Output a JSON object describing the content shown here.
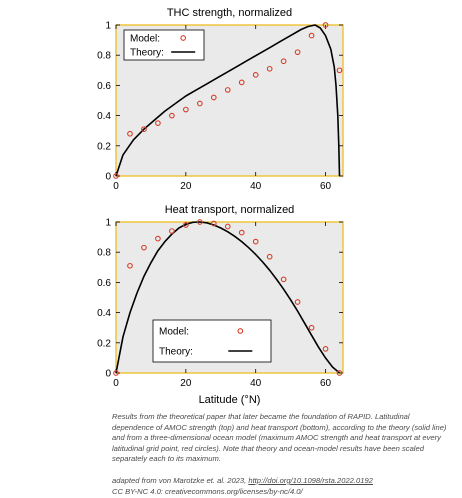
{
  "chart_data": [
    {
      "type": "line",
      "title": "THC strength, normalized",
      "xlabel": "",
      "ylabel": "",
      "xlim": [
        0,
        65
      ],
      "ylim": [
        0,
        1
      ],
      "x_ticks": [
        "0",
        "20",
        "40",
        "60"
      ],
      "y_ticks": [
        "0",
        "0.2",
        "0.4",
        "0.6",
        "0.8",
        "1"
      ],
      "grid": false,
      "legend_position": "top-left",
      "series": [
        {
          "name": "Theory:",
          "style": "solid black line",
          "x": [
            0,
            2,
            5,
            8,
            11,
            14,
            17,
            20,
            23,
            26,
            29,
            32,
            35,
            38,
            41,
            44,
            47,
            50,
            53,
            55,
            57,
            58.5,
            60,
            61.5,
            62.5,
            63,
            63.5,
            63.8,
            64
          ],
          "y": [
            0,
            0.14,
            0.24,
            0.31,
            0.37,
            0.43,
            0.48,
            0.53,
            0.57,
            0.61,
            0.65,
            0.69,
            0.73,
            0.77,
            0.81,
            0.85,
            0.89,
            0.93,
            0.97,
            0.99,
            1.0,
            0.98,
            0.93,
            0.84,
            0.72,
            0.6,
            0.4,
            0.2,
            0
          ]
        },
        {
          "name": "Model:",
          "style": "red open circles",
          "x": [
            0,
            4,
            8,
            12,
            16,
            20,
            24,
            28,
            32,
            36,
            40,
            44,
            48,
            52,
            56,
            60,
            64
          ],
          "y": [
            0,
            0.28,
            0.31,
            0.35,
            0.4,
            0.44,
            0.48,
            0.52,
            0.57,
            0.62,
            0.67,
            0.71,
            0.76,
            0.82,
            0.93,
            1.0,
            0.7
          ]
        }
      ]
    },
    {
      "type": "line",
      "title": "Heat transport, normalized",
      "xlabel": "Latitude (°N)",
      "ylabel": "",
      "xlim": [
        0,
        65
      ],
      "ylim": [
        0,
        1
      ],
      "x_ticks": [
        "0",
        "20",
        "40",
        "60"
      ],
      "y_ticks": [
        "0",
        "0.2",
        "0.4",
        "0.6",
        "0.8",
        "1"
      ],
      "grid": false,
      "legend_position": "bottom-center",
      "series": [
        {
          "name": "Theory:",
          "style": "solid black line",
          "x": [
            0,
            2,
            4,
            6,
            8,
            10,
            12,
            14,
            16,
            18,
            20,
            22,
            24,
            26,
            28,
            30,
            32,
            34,
            36,
            38,
            40,
            42,
            44,
            46,
            48,
            50,
            52,
            54,
            56,
            58,
            60,
            62,
            64
          ],
          "y": [
            0,
            0.24,
            0.4,
            0.53,
            0.64,
            0.73,
            0.81,
            0.87,
            0.92,
            0.96,
            0.985,
            0.998,
            1.0,
            0.995,
            0.98,
            0.96,
            0.935,
            0.905,
            0.87,
            0.83,
            0.785,
            0.735,
            0.68,
            0.62,
            0.555,
            0.485,
            0.41,
            0.33,
            0.25,
            0.17,
            0.1,
            0.04,
            0
          ]
        },
        {
          "name": "Model:",
          "style": "red open circles",
          "x": [
            0,
            4,
            8,
            12,
            16,
            20,
            24,
            28,
            32,
            36,
            40,
            44,
            48,
            52,
            56,
            60,
            64
          ],
          "y": [
            0,
            0.71,
            0.83,
            0.89,
            0.94,
            0.98,
            1.0,
            0.99,
            0.97,
            0.93,
            0.87,
            0.77,
            0.62,
            0.47,
            0.3,
            0.16,
            0
          ]
        }
      ]
    }
  ],
  "caption": {
    "text": "Results from the theoretical paper that later became the foundation of RAPID. Latitudinal dependence of AMOC strength (top) and heat transport (bottom), according to the theory (solid line) and from a three-dimensional ocean model (maximum AMOC strength and heat transport at every latitudinal grid point, red circles). Note that theory and ocean-model results have been scaled separately each to its maximum.",
    "source_prefix": "adapted from von Marotzke et. al. 2023, ",
    "source_link": "http://doi.org/10.1098/rsta.2022.0192",
    "license": "CC BY-NC 4.0: creativecommons.org/licenses/by-nc/4.0/"
  },
  "colors": {
    "plot_background": "#eaeaea",
    "frame": "#f0c53c",
    "model_marker": "#d63f2a",
    "theory_line": "#000000"
  }
}
